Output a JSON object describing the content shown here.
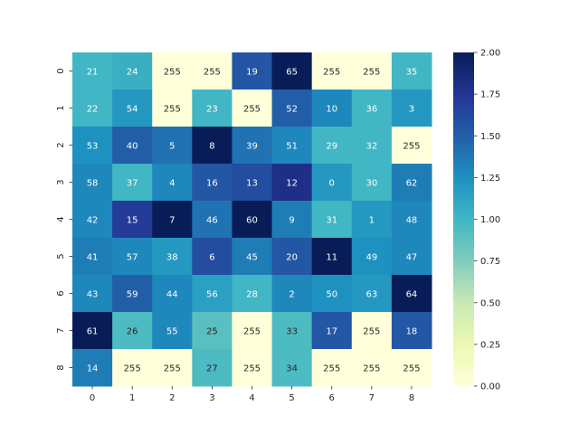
{
  "chart_data": {
    "type": "heatmap",
    "title": "",
    "xlabel": "",
    "ylabel": "",
    "x_categories": [
      "0",
      "1",
      "2",
      "3",
      "4",
      "5",
      "6",
      "7",
      "8"
    ],
    "y_categories": [
      "0",
      "1",
      "2",
      "3",
      "4",
      "5",
      "6",
      "7",
      "8"
    ],
    "annotations": [
      [
        21,
        24,
        255,
        255,
        19,
        65,
        255,
        255,
        35
      ],
      [
        22,
        54,
        255,
        23,
        255,
        52,
        10,
        36,
        3
      ],
      [
        53,
        40,
        5,
        8,
        39,
        51,
        29,
        32,
        255
      ],
      [
        58,
        37,
        4,
        16,
        13,
        12,
        0,
        30,
        62
      ],
      [
        42,
        15,
        7,
        46,
        60,
        9,
        31,
        1,
        48
      ],
      [
        41,
        57,
        38,
        6,
        45,
        20,
        11,
        49,
        47
      ],
      [
        43,
        59,
        44,
        56,
        28,
        2,
        50,
        63,
        64
      ],
      [
        61,
        26,
        55,
        25,
        255,
        33,
        17,
        255,
        18
      ],
      [
        14,
        255,
        255,
        27,
        255,
        34,
        255,
        255,
        255
      ]
    ],
    "values": [
      [
        1.0,
        1.05,
        0.0,
        0.0,
        1.55,
        2.0,
        0.0,
        0.0,
        1.0
      ],
      [
        1.0,
        1.2,
        0.0,
        1.0,
        0.0,
        1.5,
        1.3,
        1.0,
        1.2
      ],
      [
        1.25,
        1.5,
        1.4,
        2.0,
        1.4,
        1.3,
        1.0,
        1.0,
        0.0
      ],
      [
        1.3,
        1.0,
        1.3,
        1.55,
        1.6,
        1.8,
        1.2,
        1.0,
        1.35
      ],
      [
        1.3,
        1.7,
        2.0,
        1.4,
        2.0,
        1.35,
        1.0,
        1.2,
        1.3
      ],
      [
        1.35,
        1.3,
        1.2,
        1.6,
        1.35,
        1.55,
        2.0,
        1.25,
        1.3
      ],
      [
        1.3,
        1.5,
        1.3,
        1.15,
        1.0,
        1.3,
        1.25,
        1.2,
        2.0
      ],
      [
        2.0,
        0.95,
        1.3,
        0.9,
        0.0,
        0.95,
        1.55,
        0.0,
        1.55
      ],
      [
        1.35,
        0.0,
        0.0,
        0.95,
        0.0,
        0.95,
        0.0,
        0.0,
        0.0
      ]
    ],
    "colorbar": {
      "min": 0.0,
      "max": 2.0,
      "ticks": [
        "0.00",
        "0.25",
        "0.50",
        "0.75",
        "1.00",
        "1.25",
        "1.50",
        "1.75",
        "2.00"
      ],
      "colormap": "YlGnBu",
      "stops": [
        "#ffffd9",
        "#edf8b1",
        "#c7e9b4",
        "#7fcdbb",
        "#41b6c4",
        "#1d91c0",
        "#225ea8",
        "#253494",
        "#081d58"
      ]
    }
  }
}
